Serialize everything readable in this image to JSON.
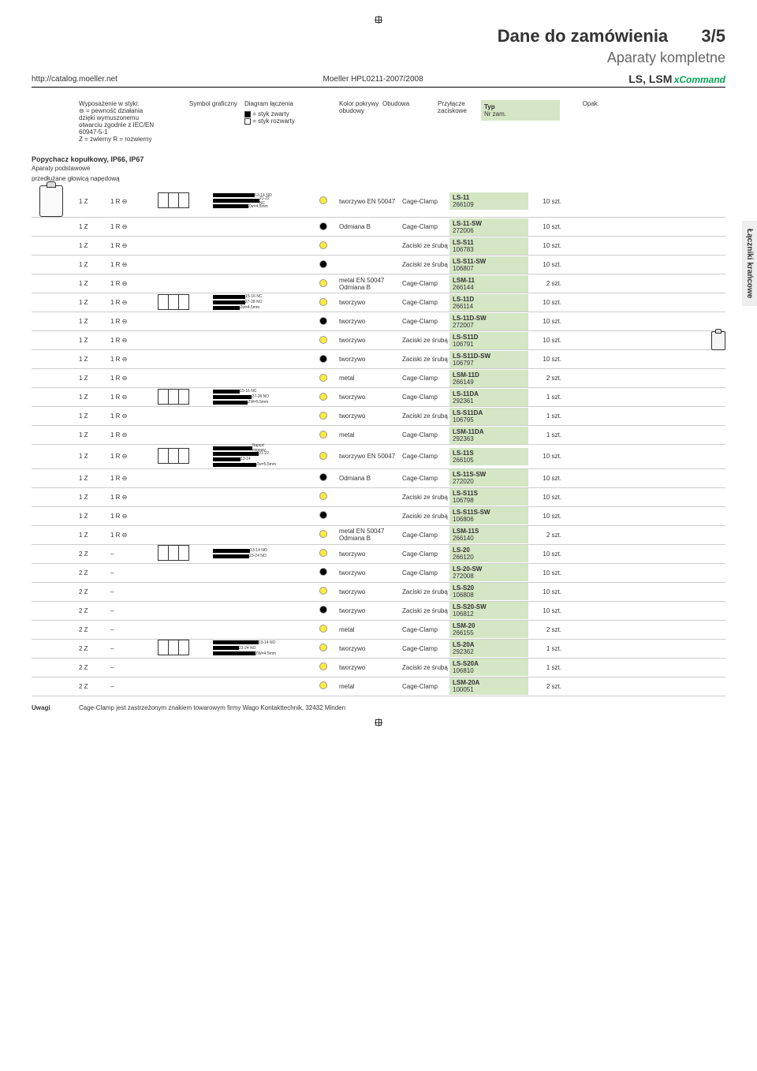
{
  "header": {
    "title": "Dane do zamówienia",
    "page": "3/5",
    "subtitle": "Aparaty kompletne",
    "url": "http://catalog.moeller.net",
    "doc_id": "Moeller HPL0211-2007/2008",
    "series": "LS, LSM",
    "brand": "xCommand"
  },
  "columns": {
    "equip_line1": "Wyposażenie w styki:",
    "equip_line2": "⊖ = pewność działania",
    "equip_line3": "dzięki wymuszonemu",
    "equip_line4": "otwarciu zgodnie z IEC/EN",
    "equip_line5": "60947-5-1",
    "equip_line6": "Z = zwierny    R = rozwierny",
    "symbol": "Symbol graficzny",
    "diagram": "Diagram łączenia",
    "legend_closed": "= styk zwarty",
    "legend_open": "= styk rozwarty",
    "color": "Kolor pokrywy obudowy",
    "housing": "Obudowa",
    "terminal": "Przyłącze zaciskowe",
    "type": "Typ",
    "type_sub": "Nr zam.",
    "pack": "Opak."
  },
  "section": {
    "title": "Popychacz kopułkowy, IP66, IP67",
    "sub1": "Aparaty podstawowe",
    "sub2": "przedłużane głowicą napędową"
  },
  "side_tab": "Łączniki krańcowe",
  "rows": [
    {
      "z": "1 Z",
      "r": "1 R ⊖",
      "sym": true,
      "diag": "13-14 NO / 21-22 NC / Zw=4.5mm",
      "dot": "yellow",
      "housing": "tworzywo EN 50047",
      "terminal": "Cage-Clamp",
      "type": "LS-11",
      "num": "266109",
      "pack": "10 szt."
    },
    {
      "z": "1 Z",
      "r": "1 R ⊖",
      "sym": false,
      "diag": "",
      "dot": "black",
      "housing": "Odmiana B",
      "terminal": "Cage-Clamp",
      "type": "LS-11-SW",
      "num": "272006",
      "pack": "10 szt."
    },
    {
      "z": "1 Z",
      "r": "1 R ⊖",
      "sym": false,
      "diag": "",
      "dot": "yellow",
      "housing": "",
      "terminal": "Zaciski ze śrubą",
      "type": "LS-S11",
      "num": "106783",
      "pack": "10 szt."
    },
    {
      "z": "1 Z",
      "r": "1 R ⊖",
      "sym": false,
      "diag": "",
      "dot": "black",
      "housing": "",
      "terminal": "Zaciski ze śrubą",
      "type": "LS-S11-SW",
      "num": "106807",
      "pack": "10 szt."
    },
    {
      "z": "1 Z",
      "r": "1 R ⊖",
      "sym": false,
      "diag": "",
      "dot": "yellow",
      "housing": "metal EN 50047 Odmiana B",
      "terminal": "Cage-Clamp",
      "type": "LSM-11",
      "num": "266144",
      "pack": "2 szt."
    },
    {
      "z": "1 Z",
      "r": "1 R ⊖",
      "sym": true,
      "diag": "15-16 NC / 27-28 NO / Zw=4.5mm",
      "dot": "yellow",
      "housing": "tworzywo",
      "terminal": "Cage-Clamp",
      "type": "LS-11D",
      "num": "266114",
      "pack": "10 szt."
    },
    {
      "z": "1 Z",
      "r": "1 R ⊖",
      "sym": false,
      "diag": "",
      "dot": "black",
      "housing": "tworzywo",
      "terminal": "Cage-Clamp",
      "type": "LS-11D-SW",
      "num": "272007",
      "pack": "10 szt."
    },
    {
      "z": "1 Z",
      "r": "1 R ⊖",
      "sym": false,
      "diag": "",
      "dot": "yellow",
      "housing": "tworzywo",
      "terminal": "Zaciski ze śrubą",
      "type": "LS-S11D",
      "num": "106791",
      "pack": "10 szt."
    },
    {
      "z": "1 Z",
      "r": "1 R ⊖",
      "sym": false,
      "diag": "",
      "dot": "black",
      "housing": "tworzywo",
      "terminal": "Zaciski ze śrubą",
      "type": "LS-S11D-SW",
      "num": "106797",
      "pack": "10 szt."
    },
    {
      "z": "1 Z",
      "r": "1 R ⊖",
      "sym": false,
      "diag": "",
      "dot": "yellow",
      "housing": "metal",
      "terminal": "Cage-Clamp",
      "type": "LSM-11D",
      "num": "266149",
      "pack": "2 szt."
    },
    {
      "z": "1 Z",
      "r": "1 R ⊖",
      "sym": true,
      "diag": "15-16 NC / 27-28 NO / ZW=5.5mm",
      "dot": "yellow",
      "housing": "tworzywo",
      "terminal": "Cage-Clamp",
      "type": "LS-11DA",
      "num": "292361",
      "pack": "1 szt."
    },
    {
      "z": "1 Z",
      "r": "1 R ⊖",
      "sym": false,
      "diag": "",
      "dot": "yellow",
      "housing": "tworzywo",
      "terminal": "Zaciski ze śrubą",
      "type": "LS-S11DA",
      "num": "106795",
      "pack": "1 szt."
    },
    {
      "z": "1 Z",
      "r": "1 R ⊖",
      "sym": false,
      "diag": "",
      "dot": "yellow",
      "housing": "metal",
      "terminal": "Cage-Clamp",
      "type": "LSM-11DA",
      "num": "292363",
      "pack": "1 szt."
    },
    {
      "z": "1 Z",
      "r": "1 R ⊖",
      "sym": true,
      "diag": "Napęd migowy / 21-22 / 13-14 / Zw=5.5mm",
      "dot": "yellow",
      "housing": "tworzywo EN 50047",
      "terminal": "Cage-Clamp",
      "type": "LS-11S",
      "num": "266105",
      "pack": "10 szt."
    },
    {
      "z": "1 Z",
      "r": "1 R ⊖",
      "sym": false,
      "diag": "",
      "dot": "black",
      "housing": "Odmiana B",
      "terminal": "Cage-Clamp",
      "type": "LS-11S-SW",
      "num": "272020",
      "pack": "10 szt."
    },
    {
      "z": "1 Z",
      "r": "1 R ⊖",
      "sym": false,
      "diag": "",
      "dot": "yellow",
      "housing": "",
      "terminal": "Zaciski ze śrubą",
      "type": "LS-S11S",
      "num": "106798",
      "pack": "10 szt."
    },
    {
      "z": "1 Z",
      "r": "1 R ⊖",
      "sym": false,
      "diag": "",
      "dot": "black",
      "housing": "",
      "terminal": "Zaciski ze śrubą",
      "type": "LS-S11S-SW",
      "num": "106806",
      "pack": "10 szt."
    },
    {
      "z": "1 Z",
      "r": "1 R ⊖",
      "sym": false,
      "diag": "",
      "dot": "yellow",
      "housing": "metal EN 50047 Odmiana B",
      "terminal": "Cage-Clamp",
      "type": "LSM-11S",
      "num": "266140",
      "pack": "2 szt."
    },
    {
      "z": "2 Z",
      "r": "–",
      "sym": true,
      "diag": "13-14 NO / 23-24 NO",
      "dot": "yellow",
      "housing": "tworzywo",
      "terminal": "Cage-Clamp",
      "type": "LS-20",
      "num": "266120",
      "pack": "10 szt."
    },
    {
      "z": "2 Z",
      "r": "–",
      "sym": false,
      "diag": "",
      "dot": "black",
      "housing": "tworzywo",
      "terminal": "Cage-Clamp",
      "type": "LS-20-SW",
      "num": "272008",
      "pack": "10 szt."
    },
    {
      "z": "2 Z",
      "r": "–",
      "sym": false,
      "diag": "",
      "dot": "yellow",
      "housing": "tworzywo",
      "terminal": "Zaciski ze śrubą",
      "type": "LS-S20",
      "num": "106808",
      "pack": "10 szt."
    },
    {
      "z": "2 Z",
      "r": "–",
      "sym": false,
      "diag": "",
      "dot": "black",
      "housing": "tworzywo",
      "terminal": "Zaciski ze śrubą",
      "type": "LS-S20-SW",
      "num": "106812",
      "pack": "10 szt."
    },
    {
      "z": "2 Z",
      "r": "–",
      "sym": false,
      "diag": "",
      "dot": "yellow",
      "housing": "metal",
      "terminal": "Cage-Clamp",
      "type": "LSM-20",
      "num": "266155",
      "pack": "2 szt."
    },
    {
      "z": "2 Z",
      "r": "–",
      "sym": true,
      "diag": "13-14 NO / 23-24 NO / ZW=4.5mm",
      "dot": "yellow",
      "housing": "tworzywo",
      "terminal": "Cage-Clamp",
      "type": "LS-20A",
      "num": "292362",
      "pack": "1 szt."
    },
    {
      "z": "2 Z",
      "r": "–",
      "sym": false,
      "diag": "",
      "dot": "yellow",
      "housing": "tworzywo",
      "terminal": "Zaciski ze śrubą",
      "type": "LS-S20A",
      "num": "106810",
      "pack": "1 szt."
    },
    {
      "z": "2 Z",
      "r": "–",
      "sym": false,
      "diag": "",
      "dot": "yellow",
      "housing": "metal",
      "terminal": "Cage-Clamp",
      "type": "LSM-20A",
      "num": "100051",
      "pack": "2 szt."
    }
  ],
  "footer": {
    "label": "Uwagi",
    "text": "Cage-Clamp jest zastrzeżonym znakiem towarowym firmy Wago Kontakttechnik, 32432 Minden"
  }
}
